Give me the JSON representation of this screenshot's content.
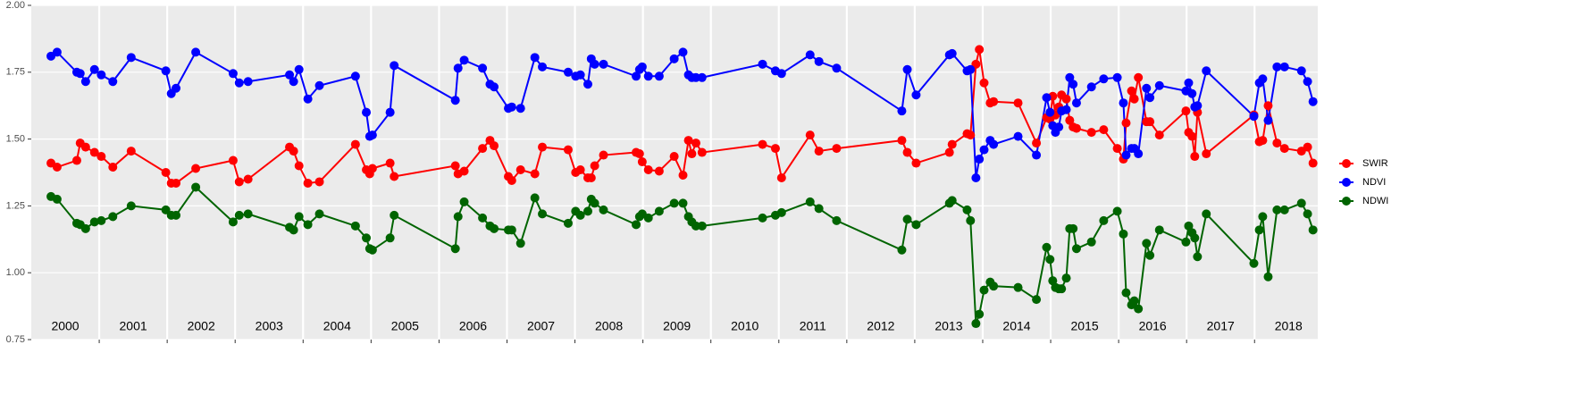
{
  "chart_data": {
    "type": "line",
    "x": [
      2000.29,
      2000.38,
      2000.67,
      2000.72,
      2000.8,
      2000.93,
      2001.03,
      2001.2,
      2001.47,
      2001.98,
      2002.06,
      2002.13,
      2002.42,
      2002.97,
      2003.06,
      2003.19,
      2003.8,
      2003.86,
      2003.94,
      2004.07,
      2004.24,
      2004.77,
      2004.93,
      2004.98,
      2005.02,
      2005.28,
      2005.34,
      2006.24,
      2006.28,
      2006.37,
      2006.64,
      2006.75,
      2006.81,
      2007.02,
      2007.07,
      2007.2,
      2007.41,
      2007.52,
      2007.9,
      2008.01,
      2008.08,
      2008.19,
      2008.24,
      2008.29,
      2008.42,
      2008.9,
      2008.95,
      2008.99,
      2009.08,
      2009.24,
      2009.46,
      2009.59,
      2009.67,
      2009.72,
      2009.78,
      2009.87,
      2010.76,
      2010.95,
      2011.04,
      2011.46,
      2011.59,
      2011.85,
      2012.81,
      2012.89,
      2013.02,
      2013.51,
      2013.55,
      2013.77,
      2013.82,
      2013.9,
      2013.95,
      2014.02,
      2014.11,
      2014.16,
      2014.52,
      2014.79,
      2014.94,
      2014.99,
      2015.03,
      2015.07,
      2015.12,
      2015.16,
      2015.23,
      2015.28,
      2015.33,
      2015.38,
      2015.6,
      2015.78,
      2015.98,
      2016.07,
      2016.11,
      2016.19,
      2016.23,
      2016.29,
      2016.41,
      2016.46,
      2016.6,
      2016.99,
      2017.03,
      2017.08,
      2017.12,
      2017.16,
      2017.29,
      2017.99,
      2018.07,
      2018.12,
      2018.2,
      2018.33,
      2018.44,
      2018.69,
      2018.78,
      2018.86
    ],
    "series": [
      {
        "name": "SWIR",
        "color": "#ff0000",
        "values": [
          1.41,
          1.395,
          1.42,
          1.485,
          1.47,
          1.45,
          1.435,
          1.395,
          1.455,
          1.375,
          1.335,
          1.335,
          1.39,
          1.42,
          1.34,
          1.35,
          1.47,
          1.455,
          1.4,
          1.335,
          1.34,
          1.48,
          1.385,
          1.37,
          1.39,
          1.41,
          1.36,
          1.4,
          1.37,
          1.38,
          1.465,
          1.495,
          1.475,
          1.36,
          1.345,
          1.385,
          1.37,
          1.47,
          1.46,
          1.375,
          1.385,
          1.355,
          1.355,
          1.4,
          1.44,
          1.45,
          1.445,
          1.415,
          1.385,
          1.38,
          1.435,
          1.365,
          1.495,
          1.445,
          1.485,
          1.45,
          1.48,
          1.465,
          1.355,
          1.515,
          1.455,
          1.465,
          1.495,
          1.45,
          1.41,
          1.45,
          1.48,
          1.52,
          1.515,
          1.78,
          1.835,
          1.71,
          1.635,
          1.64,
          1.635,
          1.485,
          1.58,
          1.575,
          1.66,
          1.59,
          1.62,
          1.665,
          1.65,
          1.57,
          1.545,
          1.54,
          1.525,
          1.535,
          1.465,
          1.425,
          1.56,
          1.68,
          1.65,
          1.73,
          1.565,
          1.565,
          1.515,
          1.605,
          1.525,
          1.51,
          1.435,
          1.6,
          1.445,
          1.59,
          1.49,
          1.495,
          1.625,
          1.485,
          1.465,
          1.455,
          1.47,
          1.41
        ]
      },
      {
        "name": "NDVI",
        "color": "#0000ff",
        "values": [
          1.81,
          1.825,
          1.75,
          1.745,
          1.715,
          1.76,
          1.74,
          1.715,
          1.805,
          1.755,
          1.67,
          1.69,
          1.825,
          1.745,
          1.71,
          1.715,
          1.74,
          1.715,
          1.76,
          1.65,
          1.7,
          1.735,
          1.6,
          1.51,
          1.515,
          1.6,
          1.775,
          1.645,
          1.765,
          1.795,
          1.765,
          1.705,
          1.695,
          1.615,
          1.62,
          1.615,
          1.805,
          1.77,
          1.75,
          1.735,
          1.74,
          1.705,
          1.8,
          1.78,
          1.78,
          1.735,
          1.76,
          1.77,
          1.735,
          1.735,
          1.8,
          1.825,
          1.74,
          1.73,
          1.73,
          1.73,
          1.78,
          1.755,
          1.745,
          1.815,
          1.79,
          1.765,
          1.605,
          1.76,
          1.665,
          1.815,
          1.82,
          1.755,
          1.76,
          1.355,
          1.425,
          1.46,
          1.495,
          1.48,
          1.51,
          1.44,
          1.655,
          1.6,
          1.55,
          1.525,
          1.545,
          1.605,
          1.61,
          1.73,
          1.705,
          1.635,
          1.695,
          1.725,
          1.73,
          1.635,
          1.44,
          1.465,
          1.465,
          1.445,
          1.69,
          1.655,
          1.7,
          1.68,
          1.71,
          1.67,
          1.62,
          1.625,
          1.755,
          1.585,
          1.71,
          1.725,
          1.57,
          1.77,
          1.77,
          1.755,
          1.715,
          1.64
        ]
      },
      {
        "name": "NDWI",
        "color": "#006400",
        "values": [
          1.285,
          1.275,
          1.185,
          1.18,
          1.165,
          1.19,
          1.195,
          1.21,
          1.25,
          1.235,
          1.215,
          1.215,
          1.32,
          1.19,
          1.215,
          1.22,
          1.17,
          1.16,
          1.21,
          1.18,
          1.22,
          1.175,
          1.13,
          1.09,
          1.085,
          1.13,
          1.215,
          1.09,
          1.21,
          1.265,
          1.205,
          1.175,
          1.165,
          1.16,
          1.16,
          1.11,
          1.28,
          1.22,
          1.185,
          1.23,
          1.215,
          1.23,
          1.275,
          1.26,
          1.235,
          1.18,
          1.21,
          1.22,
          1.205,
          1.23,
          1.26,
          1.26,
          1.21,
          1.19,
          1.175,
          1.175,
          1.205,
          1.215,
          1.225,
          1.265,
          1.24,
          1.195,
          1.085,
          1.2,
          1.18,
          1.26,
          1.27,
          1.235,
          1.195,
          0.81,
          0.845,
          0.935,
          0.965,
          0.95,
          0.945,
          0.9,
          1.095,
          1.05,
          0.97,
          0.945,
          0.94,
          0.94,
          0.98,
          1.165,
          1.165,
          1.09,
          1.115,
          1.195,
          1.23,
          1.145,
          0.925,
          0.88,
          0.895,
          0.865,
          1.11,
          1.065,
          1.16,
          1.115,
          1.175,
          1.15,
          1.13,
          1.06,
          1.22,
          1.035,
          1.16,
          1.21,
          0.985,
          1.235,
          1.235,
          1.26,
          1.22,
          1.16
        ]
      }
    ],
    "xlim": [
      2000,
      2018.93
    ],
    "xticks": [
      2001,
      2002,
      2003,
      2004,
      2005,
      2006,
      2007,
      2008,
      2009,
      2010,
      2011,
      2012,
      2013,
      2014,
      2015,
      2016,
      2017,
      2018
    ],
    "year_labels": [
      {
        "value": 2000.5,
        "label": "2000"
      },
      {
        "value": 2001.5,
        "label": "2001"
      },
      {
        "value": 2002.5,
        "label": "2002"
      },
      {
        "value": 2003.5,
        "label": "2003"
      },
      {
        "value": 2004.5,
        "label": "2004"
      },
      {
        "value": 2005.5,
        "label": "2005"
      },
      {
        "value": 2006.5,
        "label": "2006"
      },
      {
        "value": 2007.5,
        "label": "2007"
      },
      {
        "value": 2008.5,
        "label": "2008"
      },
      {
        "value": 2009.5,
        "label": "2009"
      },
      {
        "value": 2010.5,
        "label": "2010"
      },
      {
        "value": 2011.5,
        "label": "2011"
      },
      {
        "value": 2012.5,
        "label": "2012"
      },
      {
        "value": 2013.5,
        "label": "2013"
      },
      {
        "value": 2014.5,
        "label": "2014"
      },
      {
        "value": 2015.5,
        "label": "2015"
      },
      {
        "value": 2016.5,
        "label": "2016"
      },
      {
        "value": 2017.5,
        "label": "2017"
      },
      {
        "value": 2018.5,
        "label": "2018"
      }
    ],
    "ylim": [
      0.75,
      2.0
    ],
    "yticks": [
      0.75,
      {
        "value": 1.0,
        "label": "1.00"
      },
      1.25,
      {
        "value": 1.5,
        "label": "1.50"
      },
      {
        "value": 1.75,
        "label": "1.75"
      },
      {
        "value": 2.0,
        "label": "2.00"
      }
    ],
    "grid": true,
    "legend": "right"
  }
}
